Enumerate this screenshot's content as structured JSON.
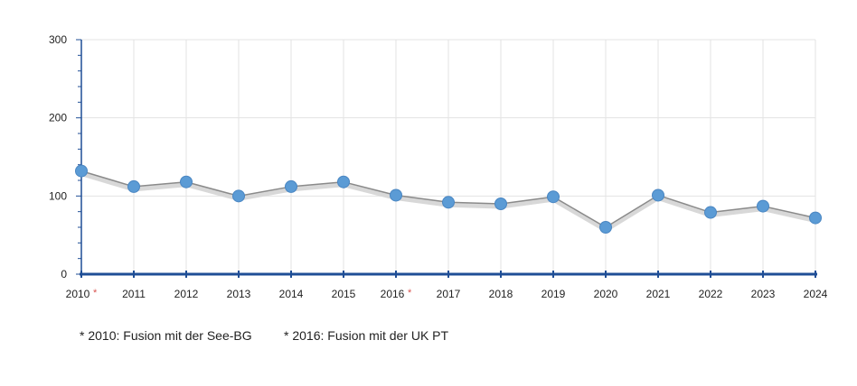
{
  "chart_data": {
    "type": "line",
    "categories": [
      "2010",
      "2011",
      "2012",
      "2013",
      "2014",
      "2015",
      "2016",
      "2017",
      "2018",
      "2019",
      "2020",
      "2021",
      "2022",
      "2023",
      "2024"
    ],
    "category_markers": {
      "2010": "*",
      "2016": "*"
    },
    "series": [
      {
        "values": [
          132,
          112,
          118,
          100,
          112,
          118,
          101,
          92,
          90,
          99,
          60,
          101,
          79,
          87,
          72
        ]
      }
    ],
    "y_ticks": [
      "0",
      "100",
      "200",
      "300"
    ],
    "ylim": [
      0,
      300
    ],
    "grid": true,
    "colors": {
      "line": "#8a8a8a",
      "marker": "#5b9bd5",
      "axis": "#1f4e96",
      "grid": "#e3e3e3",
      "marker_note": "#d9534f"
    }
  },
  "footnotes": [
    "* 2010: Fusion mit der See-BG",
    "* 2016: Fusion mit der UK PT"
  ]
}
